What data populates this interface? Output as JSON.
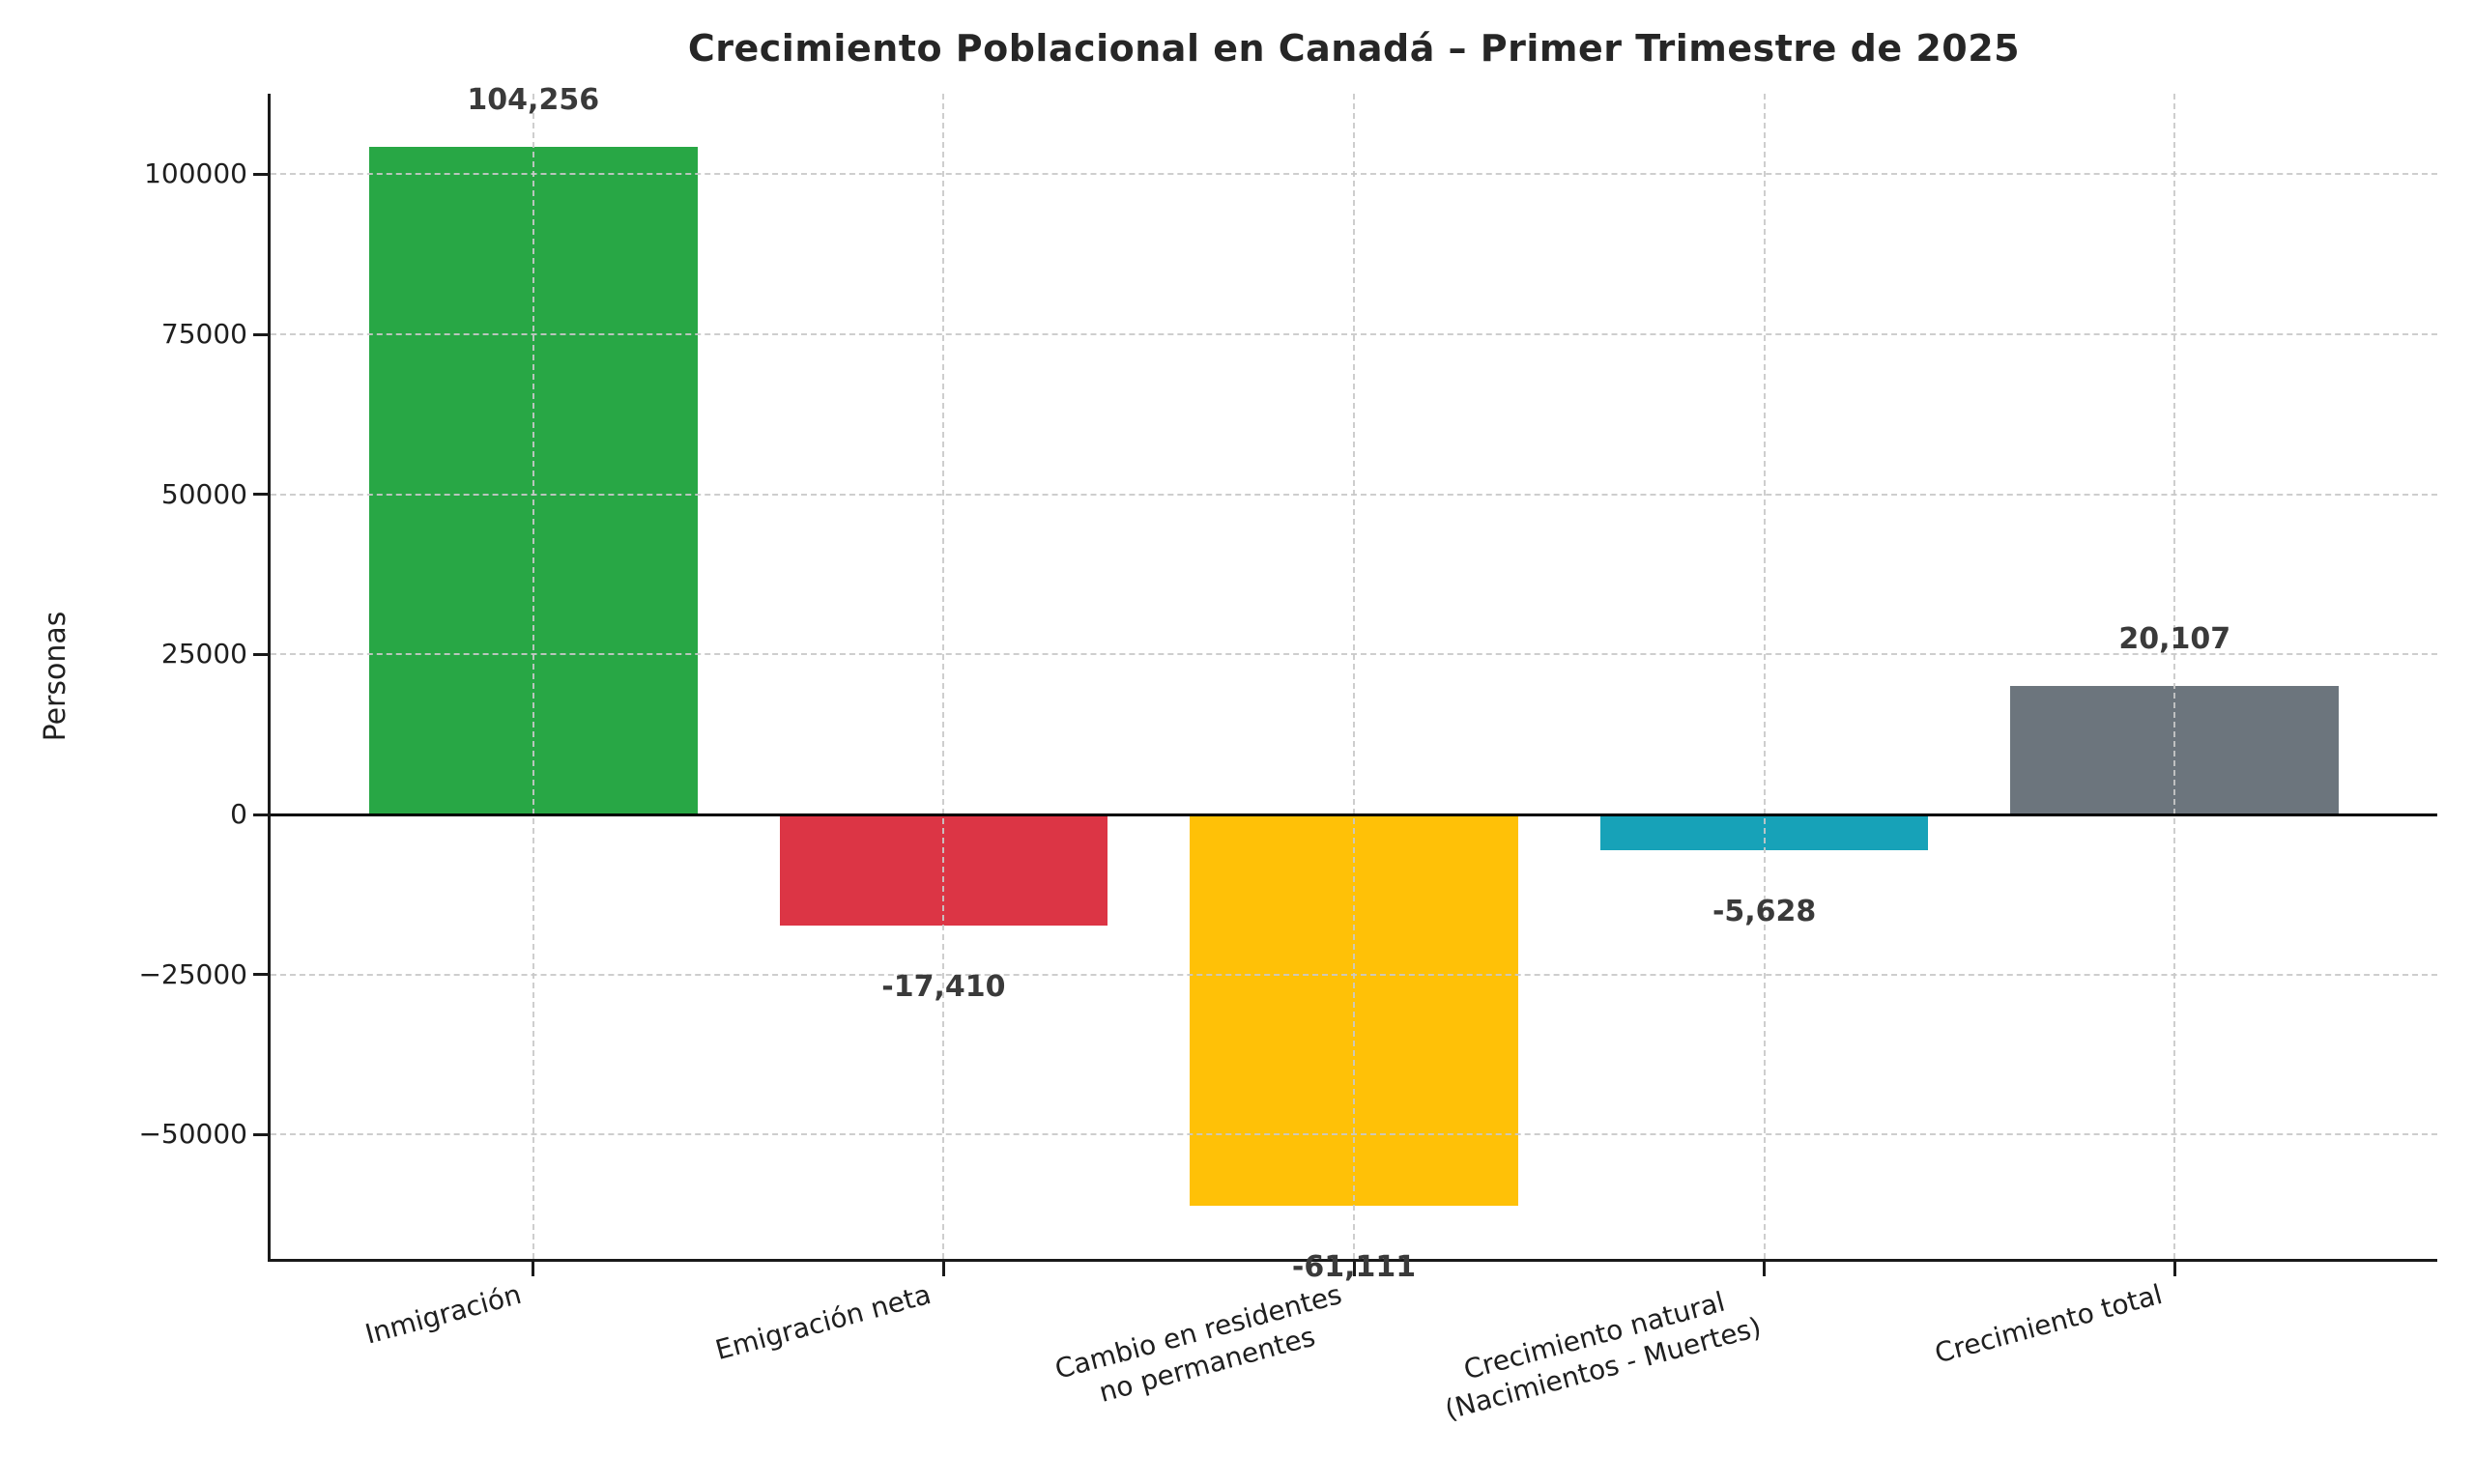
{
  "chart_data": {
    "type": "bar",
    "title": "Crecimiento Poblacional en Canadá – Primer Trimestre de 2025",
    "ylabel": "Personas",
    "xlabel": "",
    "categories": [
      "Inmigración",
      "Emigración neta",
      "Cambio en residentes\nno permanentes",
      "Crecimiento natural\n(Nacimientos - Muertes)",
      "Crecimiento total"
    ],
    "values": [
      104256,
      -17410,
      -61111,
      -5628,
      20107
    ],
    "value_labels": [
      "104,256",
      "-17,410",
      "-61,111",
      "-5,628",
      "20,107"
    ],
    "bar_colors": [
      "#28a745",
      "#dc3545",
      "#ffc107",
      "#17a2b8",
      "#6c757d"
    ],
    "yticks": [
      -50000,
      -25000,
      0,
      25000,
      50000,
      75000,
      100000
    ],
    "ylim": [
      -69400,
      112600
    ],
    "grid": true,
    "grid_style": "dashed",
    "legend_position": "none",
    "x_tick_rotation_deg": 15,
    "colors": {
      "grid": "#c9c9c9",
      "spine": "#1a1a1a",
      "zero_line": "#000000",
      "title_text": "#262626",
      "tick_text": "#1f1f1f",
      "value_label_text": "#3a3a3a",
      "background": "#ffffff"
    }
  }
}
